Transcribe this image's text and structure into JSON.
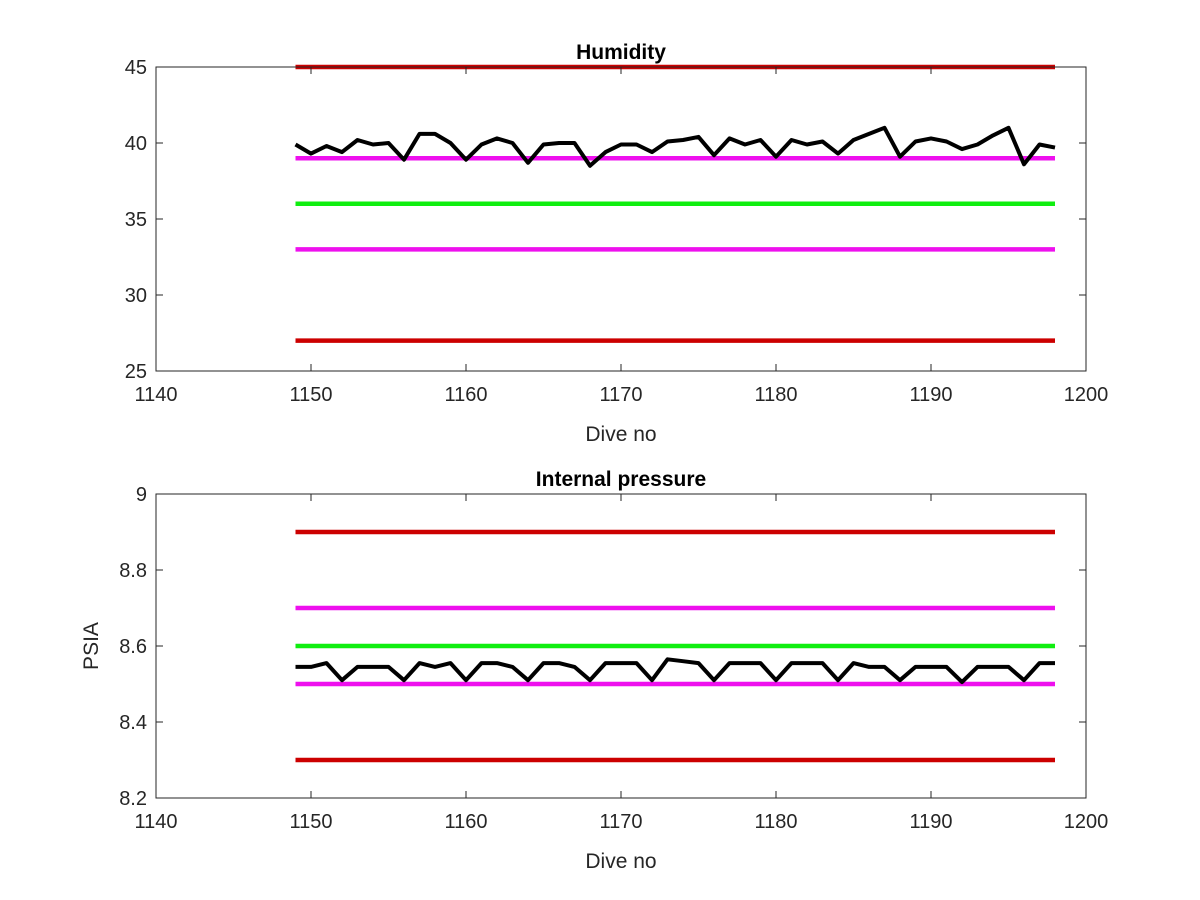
{
  "chart_data": [
    {
      "type": "line",
      "title": "Humidity",
      "xlabel": "Dive no",
      "ylabel": "",
      "xlim": [
        1140,
        1200
      ],
      "ylim": [
        25,
        45
      ],
      "xticks": [
        1140,
        1150,
        1160,
        1170,
        1180,
        1190,
        1200
      ],
      "yticks": [
        25,
        30,
        35,
        40,
        45
      ],
      "grid": false,
      "series": [
        {
          "color": "#000000",
          "x": [
            1149,
            1150,
            1151,
            1152,
            1153,
            1154,
            1155,
            1156,
            1157,
            1158,
            1159,
            1160,
            1161,
            1162,
            1163,
            1164,
            1165,
            1166,
            1167,
            1168,
            1169,
            1170,
            1171,
            1172,
            1173,
            1174,
            1175,
            1176,
            1177,
            1178,
            1179,
            1180,
            1181,
            1182,
            1183,
            1184,
            1185,
            1186,
            1187,
            1188,
            1189,
            1190,
            1191,
            1192,
            1193,
            1194,
            1195,
            1196,
            1197,
            1198
          ],
          "y": [
            39.9,
            39.3,
            39.8,
            39.4,
            40.2,
            39.9,
            40.0,
            38.9,
            40.6,
            40.6,
            40.0,
            38.9,
            39.9,
            40.3,
            40.0,
            38.7,
            39.9,
            40.0,
            40.0,
            38.5,
            39.4,
            39.9,
            39.9,
            39.4,
            40.1,
            40.2,
            40.4,
            39.2,
            40.3,
            39.9,
            40.2,
            39.1,
            40.2,
            39.9,
            40.1,
            39.3,
            40.2,
            40.6,
            41.0,
            39.1,
            40.1,
            40.3,
            40.1,
            39.6,
            39.9,
            40.5,
            41.0,
            38.6,
            39.9,
            39.7
          ]
        },
        {
          "color": "#cc0000",
          "x": [
            1149,
            1198
          ],
          "y": [
            45,
            45
          ]
        },
        {
          "color": "#ee10ee",
          "x": [
            1149,
            1198
          ],
          "y": [
            39,
            39
          ]
        },
        {
          "color": "#10ee10",
          "x": [
            1149,
            1198
          ],
          "y": [
            36,
            36
          ]
        },
        {
          "color": "#ee10ee",
          "x": [
            1149,
            1198
          ],
          "y": [
            33,
            33
          ]
        },
        {
          "color": "#cc0000",
          "x": [
            1149,
            1198
          ],
          "y": [
            27,
            27
          ]
        }
      ]
    },
    {
      "type": "line",
      "title": "Internal pressure",
      "xlabel": "Dive no",
      "ylabel": "PSIA",
      "xlim": [
        1140,
        1200
      ],
      "ylim": [
        8.2,
        9
      ],
      "xticks": [
        1140,
        1150,
        1160,
        1170,
        1180,
        1190,
        1200
      ],
      "yticks": [
        8.2,
        8.4,
        8.6,
        8.8,
        9
      ],
      "grid": false,
      "series": [
        {
          "color": "#000000",
          "x": [
            1149,
            1150,
            1151,
            1152,
            1153,
            1154,
            1155,
            1156,
            1157,
            1158,
            1159,
            1160,
            1161,
            1162,
            1163,
            1164,
            1165,
            1166,
            1167,
            1168,
            1169,
            1170,
            1171,
            1172,
            1173,
            1174,
            1175,
            1176,
            1177,
            1178,
            1179,
            1180,
            1181,
            1182,
            1183,
            1184,
            1185,
            1186,
            1187,
            1188,
            1189,
            1190,
            1191,
            1192,
            1193,
            1194,
            1195,
            1196,
            1197,
            1198
          ],
          "y": [
            8.545,
            8.545,
            8.555,
            8.51,
            8.545,
            8.545,
            8.545,
            8.51,
            8.555,
            8.545,
            8.555,
            8.51,
            8.555,
            8.555,
            8.545,
            8.51,
            8.555,
            8.555,
            8.545,
            8.51,
            8.555,
            8.555,
            8.555,
            8.51,
            8.565,
            8.56,
            8.555,
            8.51,
            8.555,
            8.555,
            8.555,
            8.51,
            8.555,
            8.555,
            8.555,
            8.51,
            8.555,
            8.545,
            8.545,
            8.51,
            8.545,
            8.545,
            8.545,
            8.505,
            8.545,
            8.545,
            8.545,
            8.51,
            8.555,
            8.555
          ]
        },
        {
          "color": "#cc0000",
          "x": [
            1149,
            1198
          ],
          "y": [
            8.9,
            8.9
          ]
        },
        {
          "color": "#ee10ee",
          "x": [
            1149,
            1198
          ],
          "y": [
            8.7,
            8.7
          ]
        },
        {
          "color": "#10ee10",
          "x": [
            1149,
            1198
          ],
          "y": [
            8.6,
            8.6
          ]
        },
        {
          "color": "#ee10ee",
          "x": [
            1149,
            1198
          ],
          "y": [
            8.5,
            8.5
          ]
        },
        {
          "color": "#cc0000",
          "x": [
            1149,
            1198
          ],
          "y": [
            8.3,
            8.3
          ]
        }
      ]
    }
  ]
}
